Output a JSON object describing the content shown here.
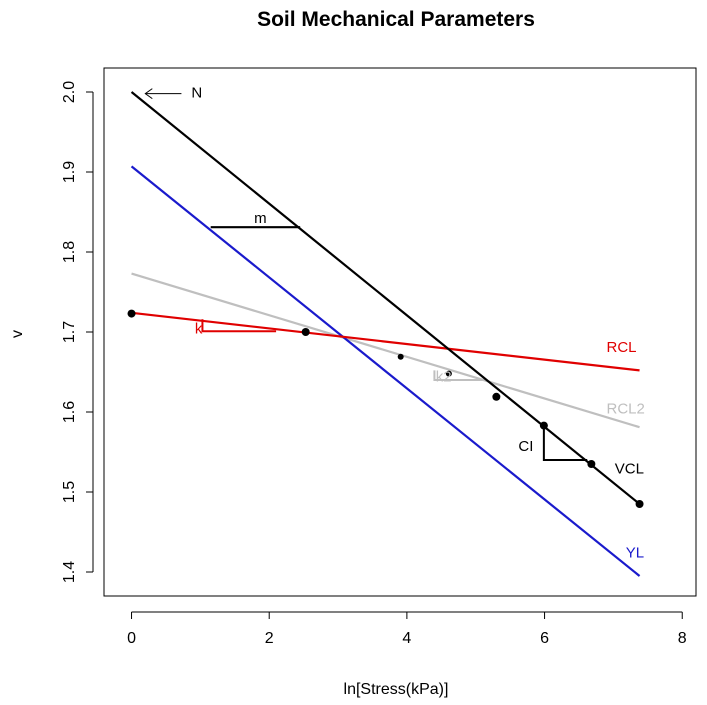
{
  "chart_data": {
    "type": "line",
    "title": "Soil Mechanical Parameters",
    "xlabel": "ln[Stress(kPa)]",
    "ylabel": "v",
    "xlim": [
      -0.4,
      8.2
    ],
    "ylim": [
      1.37,
      2.03
    ],
    "x_ticks": [
      0,
      2,
      4,
      6,
      8
    ],
    "y_ticks": [
      1.4,
      1.5,
      1.6,
      1.7,
      1.8,
      1.9,
      2.0
    ],
    "x_tick_labels": [
      "0",
      "2",
      "4",
      "6",
      "8"
    ],
    "y_tick_labels": [
      "1.4",
      "1.5",
      "1.6",
      "1.7",
      "1.8",
      "1.9",
      "2.0"
    ],
    "grid": false,
    "legend": "none",
    "colors": {
      "VCL": "#000000",
      "YL": "#1a1acc",
      "RCL": "#e00000",
      "RCL2": "#bfbfbf",
      "points": "#000000"
    },
    "series": [
      {
        "name": "VCL",
        "type": "line",
        "x": [
          0,
          7.38
        ],
        "y": [
          2.0,
          1.485
        ]
      },
      {
        "name": "YL",
        "type": "line",
        "x": [
          0,
          7.38
        ],
        "y": [
          1.907,
          1.395
        ]
      },
      {
        "name": "RCL",
        "type": "line",
        "x": [
          0,
          7.38
        ],
        "y": [
          1.724,
          1.652
        ]
      },
      {
        "name": "RCL2",
        "type": "line",
        "x": [
          0,
          7.38
        ],
        "y": [
          1.773,
          1.581
        ]
      }
    ],
    "points": {
      "x": [
        0,
        2.53,
        3.91,
        4.61,
        5.3,
        5.99,
        6.68,
        7.38
      ],
      "y": [
        1.723,
        1.7,
        1.669,
        1.648,
        1.619,
        1.583,
        1.535,
        1.485
      ]
    },
    "annotations": [
      {
        "text": "N",
        "x": 0.87,
        "y": 1.998,
        "color": "#000000",
        "arrow_to": [
          0.2,
          1.998
        ]
      },
      {
        "text": "m",
        "x": 1.78,
        "y": 1.841,
        "color": "#000000",
        "segment": [
          [
            1.15,
            1.831
          ],
          [
            2.45,
            1.831
          ]
        ]
      },
      {
        "text": "k",
        "x": 0.92,
        "y": 1.703,
        "color": "#e00000",
        "triangle": [
          [
            1.03,
            1.716
          ],
          [
            1.03,
            1.701
          ],
          [
            2.1,
            1.701
          ]
        ]
      },
      {
        "text": "k2",
        "x": 4.42,
        "y": 1.643,
        "color": "#bfbfbf",
        "triangle": [
          [
            4.4,
            1.652
          ],
          [
            4.4,
            1.64
          ],
          [
            5.1,
            1.64
          ]
        ]
      },
      {
        "text": "CI",
        "x": 5.62,
        "y": 1.556,
        "color": "#000000",
        "triangle": [
          [
            5.99,
            1.583
          ],
          [
            5.99,
            1.54
          ],
          [
            6.62,
            1.54
          ]
        ]
      },
      {
        "text": "RCL",
        "x": 6.9,
        "y": 1.68,
        "color": "#e00000"
      },
      {
        "text": "RCL2",
        "x": 6.9,
        "y": 1.603,
        "color": "#bfbfbf"
      },
      {
        "text": "VCL",
        "x": 7.02,
        "y": 1.528,
        "color": "#000000"
      },
      {
        "text": "YL",
        "x": 7.18,
        "y": 1.423,
        "color": "#1a1acc"
      }
    ]
  }
}
